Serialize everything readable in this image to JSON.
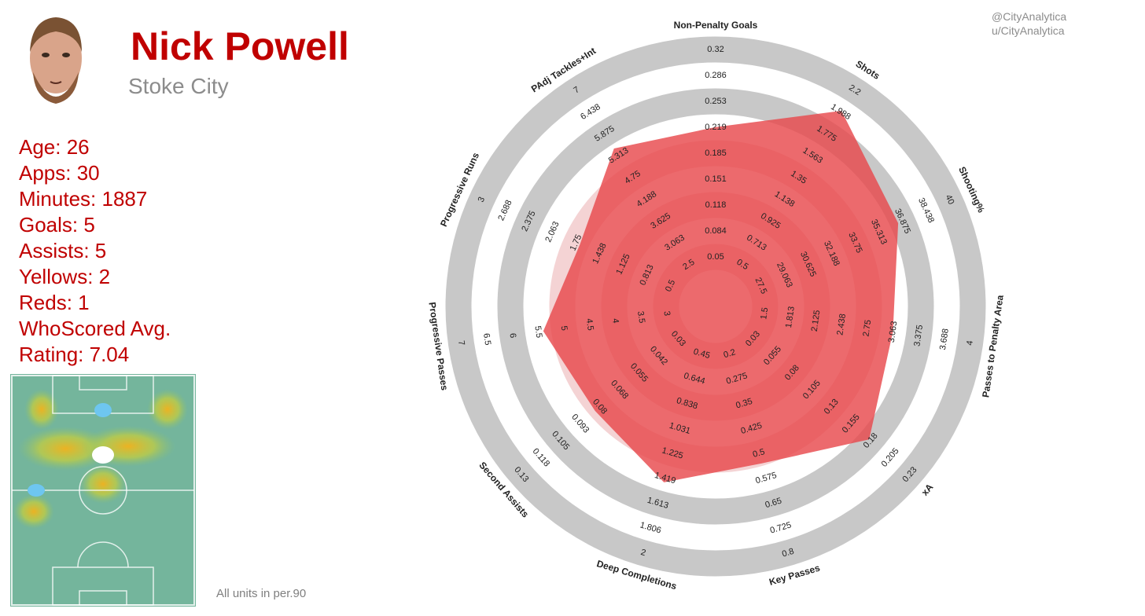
{
  "player": {
    "name": "Nick Powell",
    "team": "Stoke City",
    "stats": [
      "Age: 26",
      "Apps: 30",
      "Minutes: 1887",
      "Goals: 5",
      "Assists: 5",
      "Yellows: 2",
      "Reds: 1",
      "WhoScored Avg.",
      "Rating: 7.04"
    ]
  },
  "credits": [
    "@CityAnalytica",
    "u/CityAnalytica"
  ],
  "footnote": "All units in per.90",
  "colors": {
    "accent": "#c00000",
    "polygon_fill": "#e8494d",
    "ring_gray": "#c8c8c8",
    "ring_inner": "#e9aeb0"
  },
  "heatmap": {
    "description_icon": "pitch-heatmap",
    "markers": [
      {
        "color": "#6ec6f0",
        "x": 0.5,
        "y": 0.15
      },
      {
        "color": "#ffffff",
        "x": 0.5,
        "y": 0.35
      },
      {
        "color": "#6ec6f0",
        "x": 0.14,
        "y": 0.5
      }
    ]
  },
  "chart_data": {
    "type": "radar",
    "rings": 9,
    "grid": true,
    "axes": [
      {
        "label": "Non-Penalty Goals",
        "ticks": [
          "0.05",
          "0.084",
          "0.118",
          "0.151",
          "0.185",
          "0.219",
          "0.253",
          "0.286",
          "0.32"
        ],
        "value": 0.219
      },
      {
        "label": "Shots",
        "ticks": [
          "0.5",
          "0.713",
          "0.925",
          "1.138",
          "1.35",
          "1.563",
          "1.775",
          "1.988",
          "2.2"
        ],
        "value": 2.0
      },
      {
        "label": "Shooting%",
        "ticks": [
          "27.5",
          "29.063",
          "30.625",
          "32.188",
          "33.75",
          "35.313",
          "36.875",
          "38.438",
          "40"
        ],
        "value": 36.6
      },
      {
        "label": "Passes to Penalty Area",
        "ticks": [
          "1.5",
          "1.813",
          "2.125",
          "2.438",
          "2.75",
          "3.063",
          "3.375",
          "3.688",
          "4"
        ],
        "value": 3.06
      },
      {
        "label": "xA",
        "ticks": [
          "0.03",
          "0.055",
          "0.08",
          "0.105",
          "0.13",
          "0.155",
          "0.18",
          "0.205",
          "0.23"
        ],
        "value": 0.178
      },
      {
        "label": "Key Passes",
        "ticks": [
          "0.2",
          "0.275",
          "0.35",
          "0.425",
          "0.5",
          "0.575",
          "0.65",
          "0.725",
          "0.8"
        ],
        "value": 0.53
      },
      {
        "label": "Deep Completions",
        "ticks": [
          "0.45",
          "0.644",
          "0.838",
          "1.031",
          "1.225",
          "1.419",
          "1.613",
          "1.806",
          "2"
        ],
        "value": 1.45
      },
      {
        "label": "Second Assists",
        "ticks": [
          "0.03",
          "0.042",
          "0.055",
          "0.068",
          "0.08",
          "0.093",
          "0.105",
          "0.118",
          "0.13"
        ],
        "value": 0.083
      },
      {
        "label": "Progressive Passes",
        "ticks": [
          "3",
          "3.5",
          "4",
          "4.5",
          "5",
          "5.5",
          "6",
          "6.5",
          "7"
        ],
        "value": 5.4
      },
      {
        "label": "Progressive Runs",
        "ticks": [
          "0.5",
          "0.813",
          "1.125",
          "1.438",
          "1.75",
          "2.063",
          "2.375",
          "2.688",
          "3"
        ],
        "value": 1.7
      },
      {
        "label": "PAdj Tackles+Int",
        "ticks": [
          "2.5",
          "3.063",
          "3.625",
          "4.188",
          "4.75",
          "5.313",
          "5.875",
          "6.438",
          "7"
        ],
        "value": 5.5
      }
    ]
  }
}
